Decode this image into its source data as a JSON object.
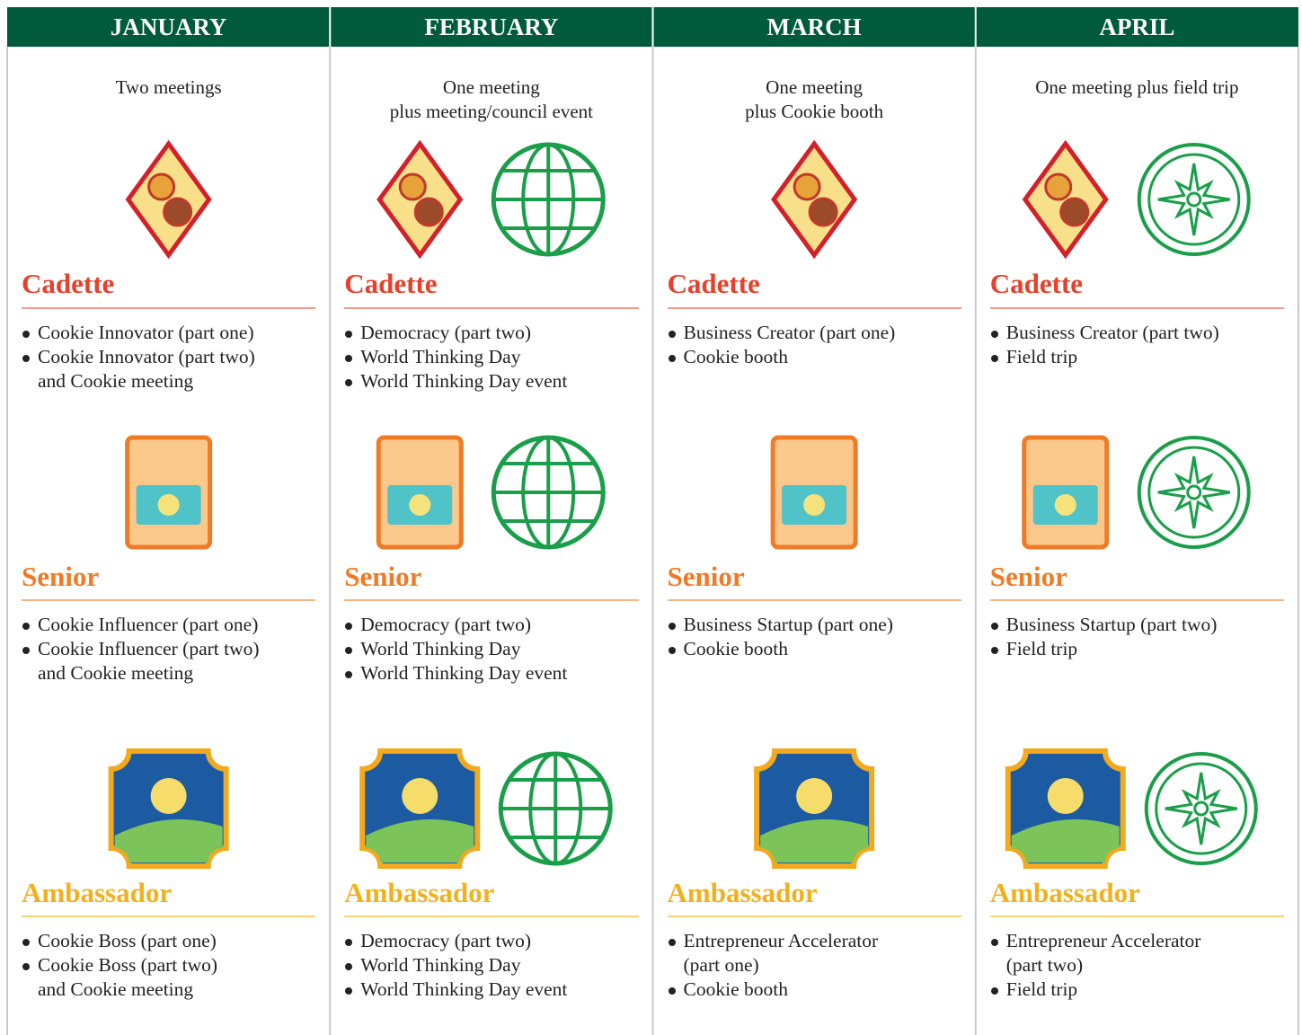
{
  "columns": [
    {
      "month": "JANUARY",
      "summary": "Two meetings",
      "levels": [
        {
          "name": "Cadette",
          "items": [
            "Cookie Innovator (part one)",
            "Cookie Innovator (part two)\nand Cookie meeting"
          ]
        },
        {
          "name": "Senior",
          "items": [
            "Cookie Influencer (part one)",
            "Cookie Influencer (part two)\nand Cookie meeting"
          ]
        },
        {
          "name": "Ambassador",
          "items": [
            "Cookie Boss (part one)",
            "Cookie Boss (part two)\nand Cookie meeting"
          ]
        }
      ]
    },
    {
      "month": "FEBRUARY",
      "summary": "One meeting\nplus meeting/council event",
      "levels": [
        {
          "name": "Cadette",
          "items": [
            "Democracy (part two)",
            "World Thinking Day",
            "World Thinking Day event"
          ]
        },
        {
          "name": "Senior",
          "items": [
            "Democracy (part two)",
            "World Thinking Day",
            "World Thinking Day event"
          ]
        },
        {
          "name": "Ambassador",
          "items": [
            "Democracy (part two)",
            "World Thinking Day",
            "World Thinking Day event"
          ]
        }
      ]
    },
    {
      "month": "MARCH",
      "summary": "One meeting\nplus Cookie booth",
      "levels": [
        {
          "name": "Cadette",
          "items": [
            "Business Creator (part one)",
            "Cookie booth"
          ]
        },
        {
          "name": "Senior",
          "items": [
            "Business Startup (part one)",
            "Cookie booth"
          ]
        },
        {
          "name": "Ambassador",
          "items": [
            "Entrepreneur Accelerator\n(part one)",
            "Cookie booth"
          ]
        }
      ]
    },
    {
      "month": "APRIL",
      "summary": "One meeting plus field trip",
      "levels": [
        {
          "name": "Cadette",
          "items": [
            "Business Creator (part two)",
            "Field trip"
          ]
        },
        {
          "name": "Senior",
          "items": [
            "Business Startup (part two)",
            "Field trip"
          ]
        },
        {
          "name": "Ambassador",
          "items": [
            "Entrepreneur Accelerator\n(part two)",
            "Field trip"
          ]
        }
      ]
    }
  ]
}
